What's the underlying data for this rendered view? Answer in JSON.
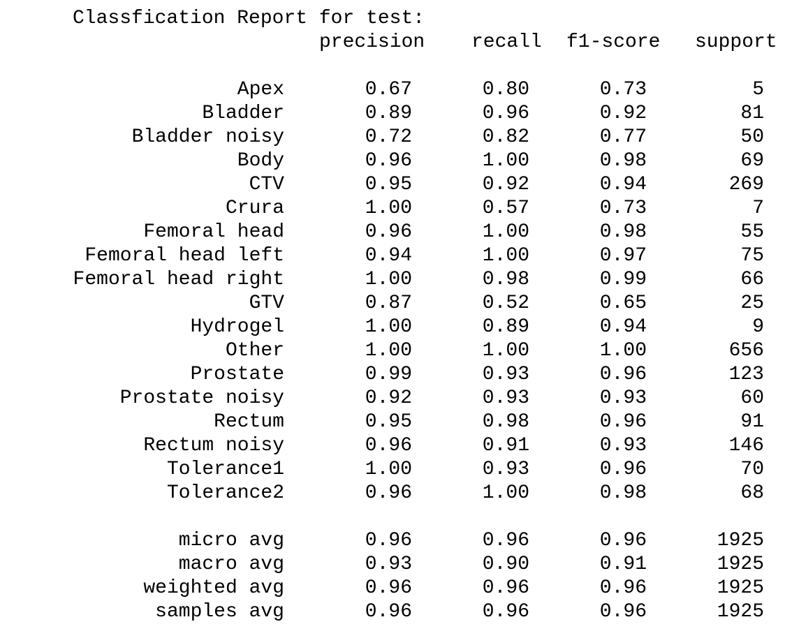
{
  "report": {
    "title": "Classfication Report for test:",
    "headers": {
      "precision": "precision",
      "recall": "recall",
      "f1": "f1-score",
      "support": "support"
    },
    "rows": [
      {
        "label": "Apex",
        "precision": "0.67",
        "recall": "0.80",
        "f1": "0.73",
        "support": "5"
      },
      {
        "label": "Bladder",
        "precision": "0.89",
        "recall": "0.96",
        "f1": "0.92",
        "support": "81"
      },
      {
        "label": "Bladder noisy",
        "precision": "0.72",
        "recall": "0.82",
        "f1": "0.77",
        "support": "50"
      },
      {
        "label": "Body",
        "precision": "0.96",
        "recall": "1.00",
        "f1": "0.98",
        "support": "69"
      },
      {
        "label": "CTV",
        "precision": "0.95",
        "recall": "0.92",
        "f1": "0.94",
        "support": "269"
      },
      {
        "label": "Crura",
        "precision": "1.00",
        "recall": "0.57",
        "f1": "0.73",
        "support": "7"
      },
      {
        "label": "Femoral head",
        "precision": "0.96",
        "recall": "1.00",
        "f1": "0.98",
        "support": "55"
      },
      {
        "label": "Femoral head left",
        "precision": "0.94",
        "recall": "1.00",
        "f1": "0.97",
        "support": "75"
      },
      {
        "label": "Femoral head right",
        "precision": "1.00",
        "recall": "0.98",
        "f1": "0.99",
        "support": "66"
      },
      {
        "label": "GTV",
        "precision": "0.87",
        "recall": "0.52",
        "f1": "0.65",
        "support": "25"
      },
      {
        "label": "Hydrogel",
        "precision": "1.00",
        "recall": "0.89",
        "f1": "0.94",
        "support": "9"
      },
      {
        "label": "Other",
        "precision": "1.00",
        "recall": "1.00",
        "f1": "1.00",
        "support": "656"
      },
      {
        "label": "Prostate",
        "precision": "0.99",
        "recall": "0.93",
        "f1": "0.96",
        "support": "123"
      },
      {
        "label": "Prostate noisy",
        "precision": "0.92",
        "recall": "0.93",
        "f1": "0.93",
        "support": "60"
      },
      {
        "label": "Rectum",
        "precision": "0.95",
        "recall": "0.98",
        "f1": "0.96",
        "support": "91"
      },
      {
        "label": "Rectum noisy",
        "precision": "0.96",
        "recall": "0.91",
        "f1": "0.93",
        "support": "146"
      },
      {
        "label": "Tolerance1",
        "precision": "1.00",
        "recall": "0.93",
        "f1": "0.96",
        "support": "70"
      },
      {
        "label": "Tolerance2",
        "precision": "0.96",
        "recall": "1.00",
        "f1": "0.98",
        "support": "68"
      }
    ],
    "averages": [
      {
        "label": "micro avg",
        "precision": "0.96",
        "recall": "0.96",
        "f1": "0.96",
        "support": "1925"
      },
      {
        "label": "macro avg",
        "precision": "0.93",
        "recall": "0.90",
        "f1": "0.91",
        "support": "1925"
      },
      {
        "label": "weighted avg",
        "precision": "0.96",
        "recall": "0.96",
        "f1": "0.96",
        "support": "1925"
      },
      {
        "label": "samples avg",
        "precision": "0.96",
        "recall": "0.96",
        "f1": "0.96",
        "support": "1925"
      }
    ]
  }
}
